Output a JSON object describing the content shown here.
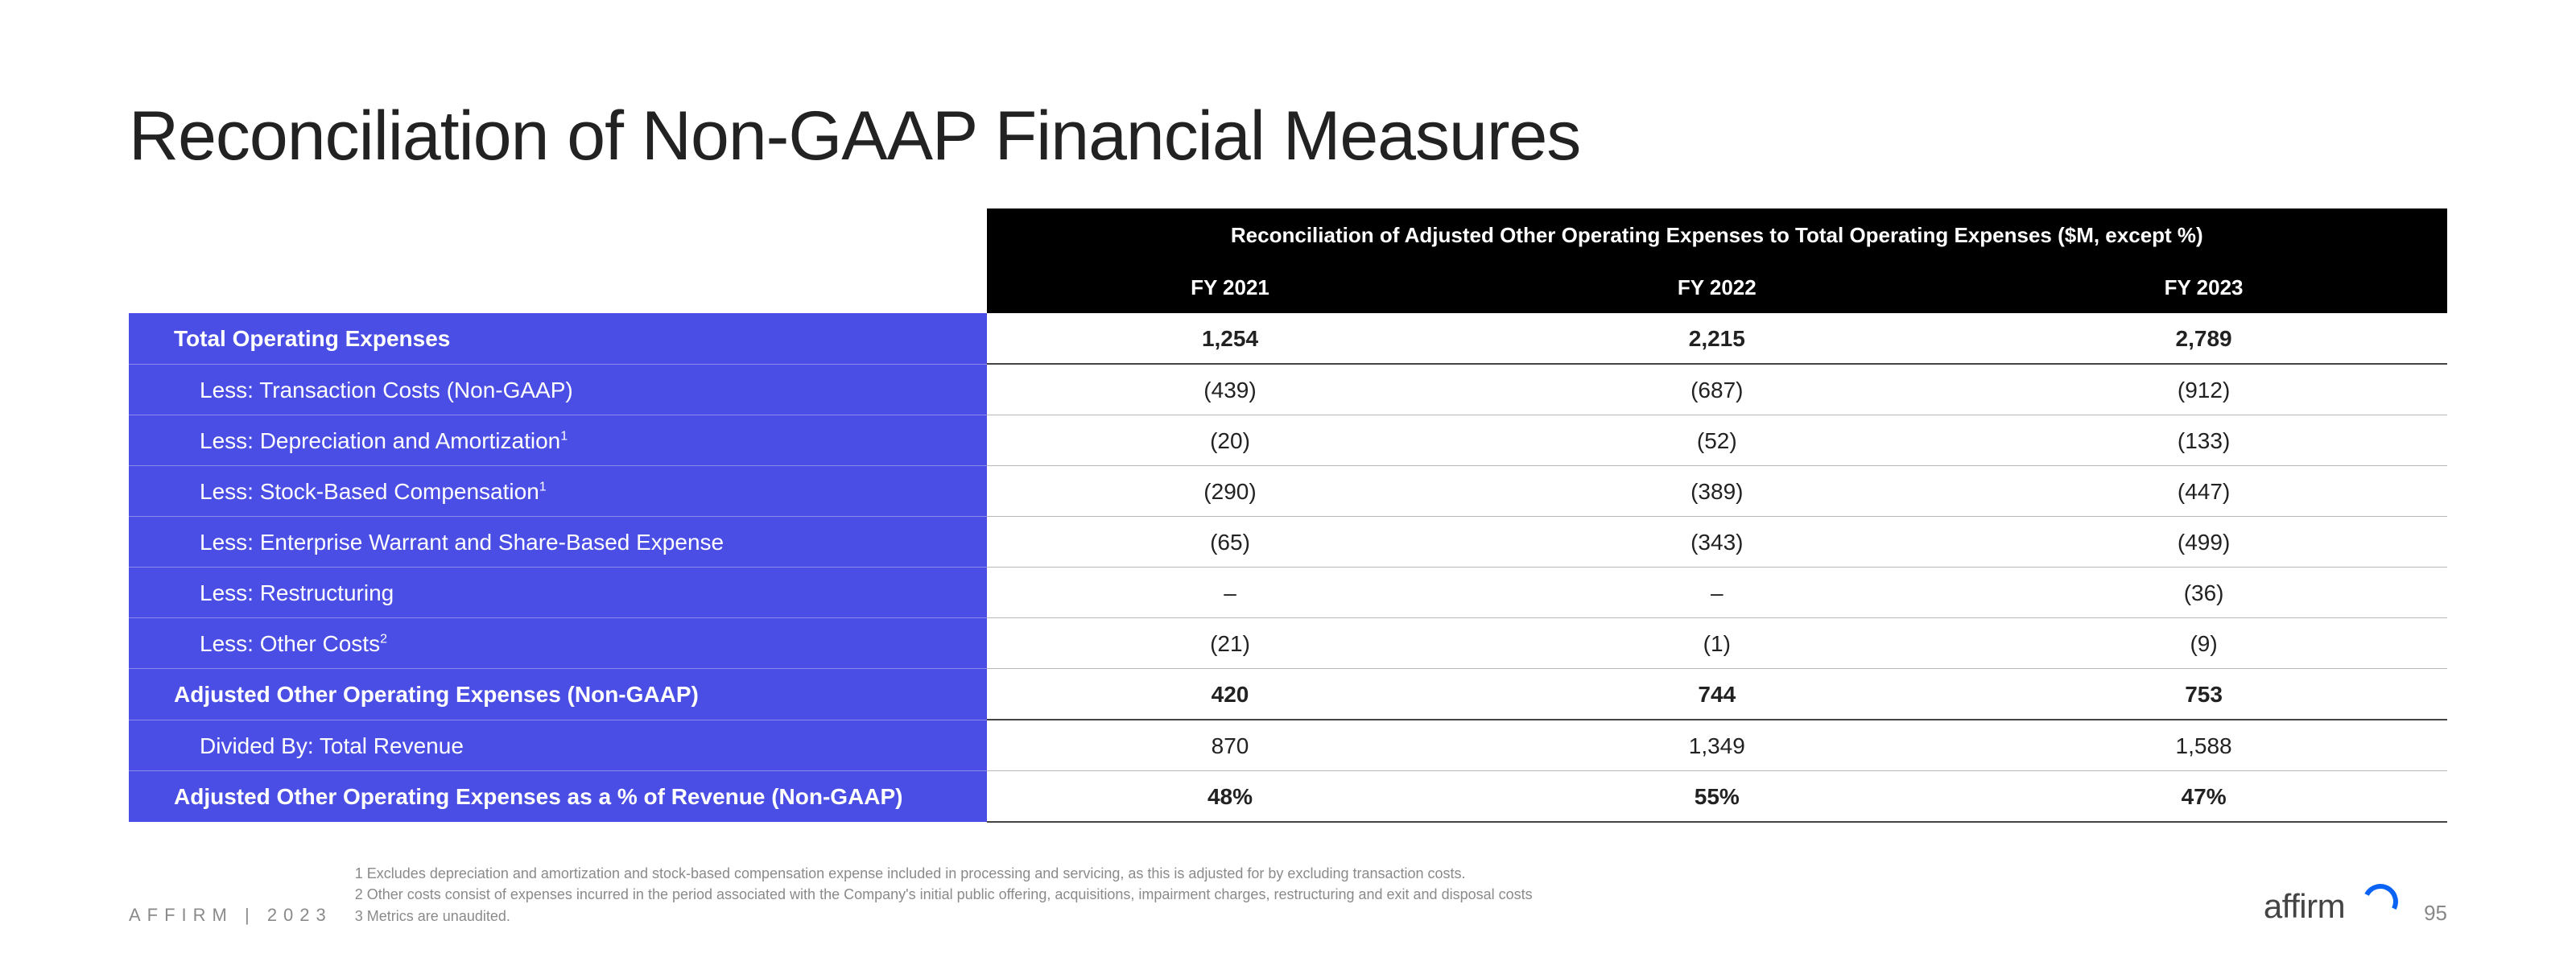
{
  "title": "Reconciliation of Non-GAAP Financial Measures",
  "table": {
    "banner": "Reconciliation of Adjusted Other Operating Expenses to Total Operating Expenses  ($M, except %)",
    "years": [
      "FY 2021",
      "FY 2022",
      "FY 2023"
    ],
    "rows": [
      {
        "label": "Total Operating Expenses",
        "vals": [
          "1,254",
          "2,215",
          "2,789"
        ],
        "indent": 1,
        "bold": true
      },
      {
        "label": "Less: Transaction Costs (Non-GAAP)",
        "vals": [
          "(439)",
          "(687)",
          "(912)"
        ],
        "indent": 2
      },
      {
        "label": "Less: Depreciation and Amortization",
        "sup": "1",
        "vals": [
          "(20)",
          "(52)",
          "(133)"
        ],
        "indent": 2
      },
      {
        "label": "Less: Stock-Based Compensation",
        "sup": "1",
        "vals": [
          "(290)",
          "(389)",
          "(447)"
        ],
        "indent": 2
      },
      {
        "label": "Less: Enterprise Warrant and Share-Based Expense",
        "vals": [
          "(65)",
          "(343)",
          "(499)"
        ],
        "indent": 2
      },
      {
        "label": "Less: Restructuring",
        "vals": [
          "–",
          "–",
          "(36)"
        ],
        "indent": 2
      },
      {
        "label": "Less: Other Costs",
        "sup": "2",
        "vals": [
          "(21)",
          "(1)",
          "(9)"
        ],
        "indent": 2
      },
      {
        "label": "Adjusted Other Operating Expenses (Non-GAAP)",
        "vals": [
          "420",
          "744",
          "753"
        ],
        "indent": 1,
        "bold": true
      },
      {
        "label": "Divided By: Total Revenue",
        "vals": [
          "870",
          "1,349",
          "1,588"
        ],
        "indent": 2
      },
      {
        "label": "Adjusted Other Operating Expenses as a % of Revenue (Non-GAAP)",
        "vals": [
          "48%",
          "55%",
          "47%"
        ],
        "indent": 1,
        "bold": true
      }
    ],
    "colors": {
      "label_bg": "#4b4ee4",
      "header_bg": "#000000",
      "row_border": "#b8b8b8"
    }
  },
  "footer": {
    "brand_year": "AFFIRM | 2023",
    "notes": [
      "1 Excludes depreciation and amortization and stock-based compensation expense included in processing and servicing, as this is adjusted for by excluding transaction costs.",
      "2 Other costs consist of expenses incurred in the period associated with the Company's initial public offering, acquisitions, impairment charges, restructuring and exit and disposal costs",
      "3 Metrics are unaudited."
    ],
    "logo": "affirm",
    "page": "95"
  }
}
